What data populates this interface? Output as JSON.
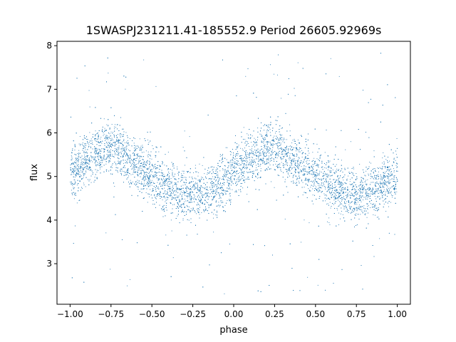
{
  "chart_data": {
    "type": "scatter",
    "title": "1SWASPJ231211.41-185552.9 Period 26605.92969s",
    "xlabel": "phase",
    "ylabel": "flux",
    "xlim": [
      -1.08,
      1.08
    ],
    "ylim": [
      2.07,
      8.1
    ],
    "xticks": [
      -1.0,
      -0.75,
      -0.5,
      -0.25,
      0.0,
      0.25,
      0.5,
      0.75,
      1.0
    ],
    "xtick_labels": [
      "−1.00",
      "−0.75",
      "−0.50",
      "−0.25",
      "0.00",
      "0.25",
      "0.50",
      "0.75",
      "1.00"
    ],
    "yticks": [
      3,
      4,
      5,
      6,
      7,
      8
    ],
    "ytick_labels": [
      "3",
      "4",
      "5",
      "6",
      "7",
      "8"
    ],
    "grid": false,
    "marker_color": "#1f77b4",
    "series": [
      {
        "x_range": [
          -1.0,
          1.0
        ],
        "model": "folded sinusoid, period 1 in phase",
        "curve": {
          "x": [
            -1.0,
            -0.9,
            -0.8,
            -0.75,
            -0.7,
            -0.6,
            -0.5,
            -0.4,
            -0.3,
            -0.25,
            -0.2,
            -0.1,
            0.0,
            0.1,
            0.2,
            0.25,
            0.3,
            0.4,
            0.5,
            0.6,
            0.7,
            0.75,
            0.8,
            0.9,
            1.0
          ],
          "y": [
            5.0,
            5.4,
            5.65,
            5.7,
            5.6,
            5.3,
            5.0,
            4.75,
            4.6,
            4.55,
            4.6,
            4.8,
            5.05,
            5.4,
            5.65,
            5.7,
            5.6,
            5.3,
            5.0,
            4.75,
            4.6,
            4.55,
            4.6,
            4.8,
            5.05
          ]
        },
        "scatter_sigma": 0.3,
        "outlier_y_range": [
          2.3,
          7.85
        ]
      }
    ]
  }
}
